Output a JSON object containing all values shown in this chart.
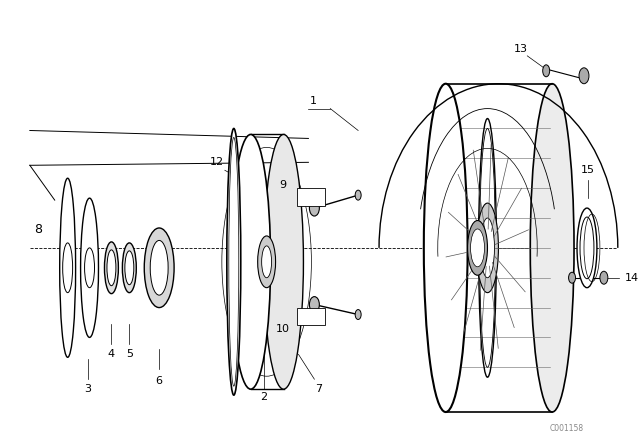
{
  "background_color": "#ffffff",
  "fig_width": 6.4,
  "fig_height": 4.48,
  "dpi": 100,
  "watermark": "C001158",
  "line_color": "#000000",
  "text_color": "#000000",
  "label_fontsize": 8.0
}
